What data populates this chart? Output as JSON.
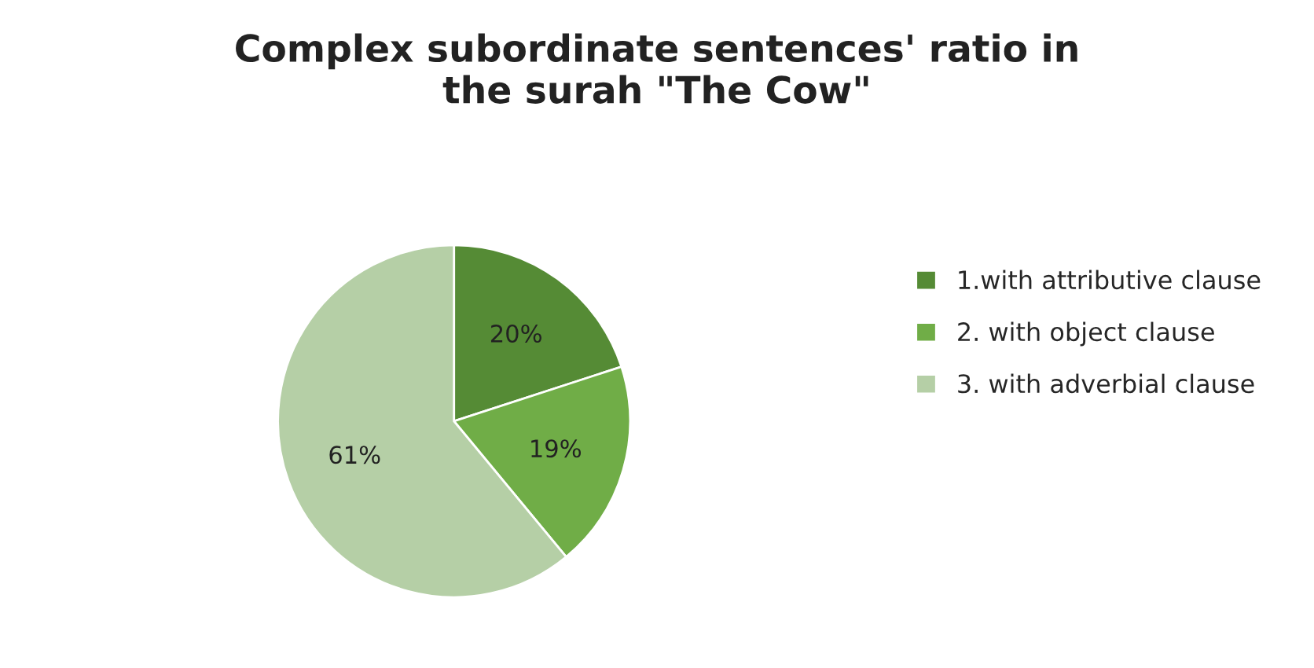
{
  "chart_data": {
    "type": "pie",
    "title": "Complex subordinate sentences' ratio in\nthe surah \"The Cow\"",
    "categories": [
      "1.with attributive clause",
      "2. with object clause",
      "3. with adverbial clause"
    ],
    "values": [
      20,
      19,
      61
    ],
    "colors": [
      "#558b35",
      "#70ad47",
      "#b5cfa6"
    ],
    "value_labels": [
      "20%",
      "19%",
      "61%"
    ],
    "legend": "right"
  }
}
